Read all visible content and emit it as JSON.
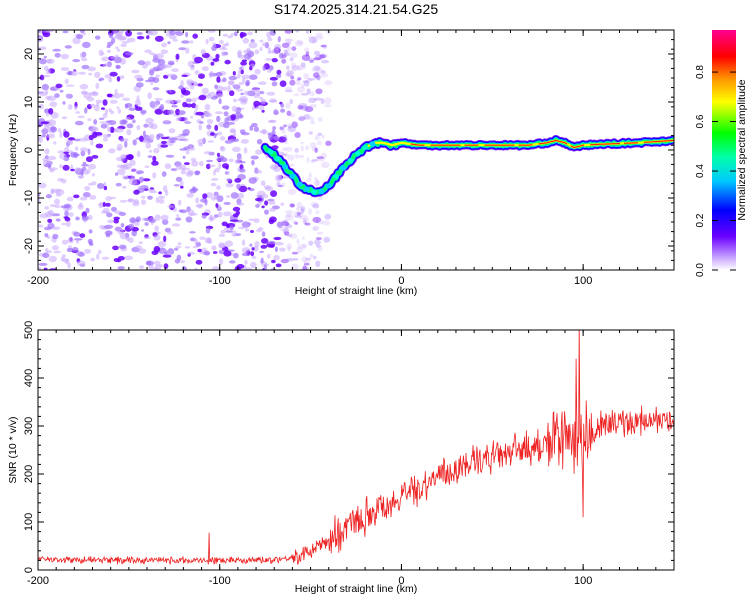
{
  "title": "S174.2025.314.21.54.G25",
  "chart_data": [
    {
      "type": "heatmap",
      "name": "spectrogram",
      "xlabel": "Height of straight line (km)",
      "ylabel": "Frequency (Hz)",
      "xlim": [
        -200,
        150
      ],
      "ylim": [
        -25,
        25
      ],
      "xticks": [
        -200,
        -100,
        0,
        100
      ],
      "xtick_labels": [
        "-200",
        "-100",
        "0",
        "100"
      ],
      "yticks": [
        -20,
        -10,
        0,
        10,
        20
      ],
      "ytick_labels": [
        "-20",
        "-10",
        "0",
        "10",
        "20"
      ],
      "colorbar": {
        "label": "Normalized spectral amplitude",
        "range": [
          0,
          0.97
        ],
        "ticks": [
          0,
          0.2,
          0.4,
          0.6,
          0.8
        ],
        "tick_labels": [
          "0.0",
          "0.2",
          "0.4",
          "0.6",
          "0.8"
        ],
        "colormap": [
          "#ffffff",
          "#6a00ff",
          "#0000ff",
          "#00ffff",
          "#00ff00",
          "#ffff00",
          "#ff8000",
          "#ff0000",
          "#ff0080"
        ]
      },
      "noise_region_x": [
        -200,
        -45
      ],
      "ridge": {
        "x": [
          -75,
          -70,
          -65,
          -60,
          -55,
          -50,
          -45,
          -40,
          -35,
          -30,
          -25,
          -20,
          -15,
          -10,
          -5,
          0,
          10,
          30,
          50,
          70,
          80,
          85,
          90,
          95,
          100,
          110,
          130,
          150
        ],
        "y": [
          0.5,
          -1,
          -3,
          -5.5,
          -7.5,
          -8.5,
          -9,
          -7.5,
          -5,
          -3,
          -1,
          0.5,
          1.5,
          1.5,
          1,
          1.5,
          1,
          1,
          1,
          1,
          1.5,
          2,
          1.5,
          0.5,
          1,
          1.2,
          1.5,
          2
        ],
        "peak_amplitude": 0.97
      }
    },
    {
      "type": "line",
      "name": "snr",
      "xlabel": "Height of straight line (km)",
      "ylabel": "SNR (10 * v/v)",
      "xlim": [
        -200,
        150
      ],
      "ylim": [
        0,
        500
      ],
      "xticks": [
        -200,
        -100,
        0,
        100
      ],
      "xtick_labels": [
        "-200",
        "-100",
        "0",
        "100"
      ],
      "yticks": [
        0,
        100,
        200,
        300,
        400,
        500
      ],
      "ytick_labels": [
        "0",
        "100",
        "200",
        "300",
        "400",
        "500"
      ],
      "color": "#ee2222",
      "trend": {
        "x": [
          -200,
          -150,
          -100,
          -70,
          -55,
          -45,
          -30,
          -15,
          0,
          20,
          40,
          60,
          80,
          90,
          100,
          110,
          130,
          150
        ],
        "y": [
          22,
          20,
          20,
          22,
          28,
          50,
          90,
          125,
          150,
          195,
          225,
          245,
          262,
          270,
          270,
          300,
          310,
          310
        ]
      },
      "spikes": [
        {
          "x": -106,
          "y": 78
        },
        {
          "x": 96,
          "y": 440
        },
        {
          "x": 98,
          "y": 520
        },
        {
          "x": 100,
          "y": 110
        }
      ]
    }
  ]
}
